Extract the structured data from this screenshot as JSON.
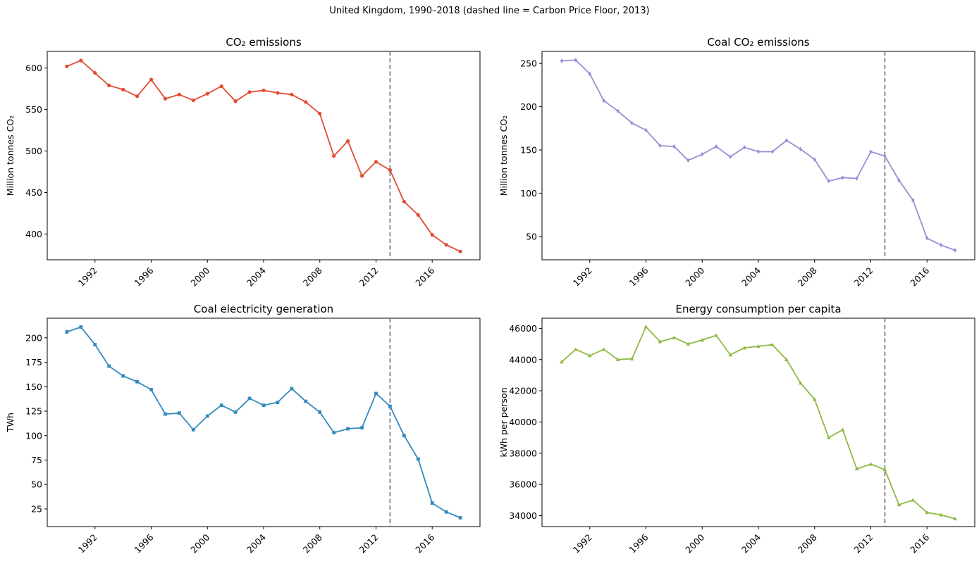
{
  "figure": {
    "suptitle": "United Kingdom, 1990–2018  (dashed line = Carbon Price Floor, 2013)"
  },
  "chart_data": [
    {
      "type": "line",
      "title": "CO₂ emissions",
      "xlabel": "",
      "ylabel": "Million tonnes CO₂",
      "color": "#e24a33",
      "marker": "circle",
      "xlim": [
        1988.6,
        2019.4
      ],
      "ylim": [
        369,
        620
      ],
      "xticks": [
        1992,
        1996,
        2000,
        2004,
        2008,
        2012,
        2016
      ],
      "yticks": [
        400,
        450,
        500,
        550,
        600
      ],
      "vline": 2013,
      "x": [
        1990,
        1991,
        1992,
        1993,
        1994,
        1995,
        1996,
        1997,
        1998,
        1999,
        2000,
        2001,
        2002,
        2003,
        2004,
        2005,
        2006,
        2007,
        2008,
        2009,
        2010,
        2011,
        2012,
        2013,
        2014,
        2015,
        2016,
        2017,
        2018
      ],
      "y": [
        602,
        609,
        594,
        579,
        574,
        566,
        586,
        563,
        568,
        561,
        569,
        578,
        560,
        571,
        573,
        570,
        568,
        559,
        545,
        494,
        512,
        470,
        487,
        477,
        439,
        423,
        399,
        387,
        379
      ]
    },
    {
      "type": "line",
      "title": "Coal CO₂ emissions",
      "xlabel": "",
      "ylabel": "Million tonnes CO₂",
      "color": "#988ed5",
      "marker": "diamond",
      "xlim": [
        1988.6,
        2019.4
      ],
      "ylim": [
        23,
        264
      ],
      "xticks": [
        1992,
        1996,
        2000,
        2004,
        2008,
        2012,
        2016
      ],
      "yticks": [
        50,
        100,
        150,
        200,
        250
      ],
      "vline": 2013,
      "x": [
        1990,
        1991,
        1992,
        1993,
        1994,
        1995,
        1996,
        1997,
        1998,
        1999,
        2000,
        2001,
        2002,
        2003,
        2004,
        2005,
        2006,
        2007,
        2008,
        2009,
        2010,
        2011,
        2012,
        2013,
        2014,
        2015,
        2016,
        2017,
        2018
      ],
      "y": [
        253,
        254,
        238,
        207,
        195,
        181,
        173,
        155,
        154,
        138,
        145,
        154,
        142,
        153,
        148,
        148,
        161,
        151,
        139,
        114,
        118,
        117,
        148,
        143,
        115,
        92,
        48,
        40,
        34
      ]
    },
    {
      "type": "line",
      "title": "Coal electricity generation",
      "xlabel": "",
      "ylabel": "TWh",
      "color": "#348abd",
      "marker": "square",
      "xlim": [
        1988.6,
        2019.4
      ],
      "ylim": [
        7,
        220
      ],
      "xticks": [
        1992,
        1996,
        2000,
        2004,
        2008,
        2012,
        2016
      ],
      "yticks": [
        25,
        50,
        75,
        100,
        125,
        150,
        175,
        200
      ],
      "vline": 2013,
      "x": [
        1990,
        1991,
        1992,
        1993,
        1994,
        1995,
        1996,
        1997,
        1998,
        1999,
        2000,
        2001,
        2002,
        2003,
        2004,
        2005,
        2006,
        2007,
        2008,
        2009,
        2010,
        2011,
        2012,
        2013,
        2014,
        2015,
        2016,
        2017,
        2018
      ],
      "y": [
        206,
        211,
        193,
        171,
        161,
        155,
        147,
        122,
        123,
        106,
        120,
        131,
        124,
        138,
        131,
        134,
        148,
        135,
        124,
        103,
        107,
        108,
        143,
        130,
        100,
        76,
        31,
        22,
        16
      ]
    },
    {
      "type": "line",
      "title": "Energy consumption per capita",
      "xlabel": "",
      "ylabel": "kWh per person",
      "color": "#8eba42",
      "marker": "triangle",
      "xlim": [
        1988.6,
        2019.4
      ],
      "ylim": [
        33300,
        46650
      ],
      "xticks": [
        1992,
        1996,
        2000,
        2004,
        2008,
        2012,
        2016
      ],
      "yticks": [
        34000,
        36000,
        38000,
        40000,
        42000,
        44000,
        46000
      ],
      "vline": 2013,
      "x": [
        1990,
        1991,
        1992,
        1993,
        1994,
        1995,
        1996,
        1997,
        1998,
        1999,
        2000,
        2001,
        2002,
        2003,
        2004,
        2005,
        2006,
        2007,
        2008,
        2009,
        2010,
        2011,
        2012,
        2013,
        2014,
        2015,
        2016,
        2017,
        2018
      ],
      "y": [
        43850,
        44650,
        44250,
        44650,
        44000,
        44050,
        46100,
        45150,
        45400,
        45000,
        45250,
        45550,
        44300,
        44750,
        44850,
        44950,
        44000,
        42500,
        41450,
        39000,
        39500,
        37000,
        37300,
        36950,
        34700,
        35000,
        34200,
        34050,
        33800
      ]
    }
  ]
}
